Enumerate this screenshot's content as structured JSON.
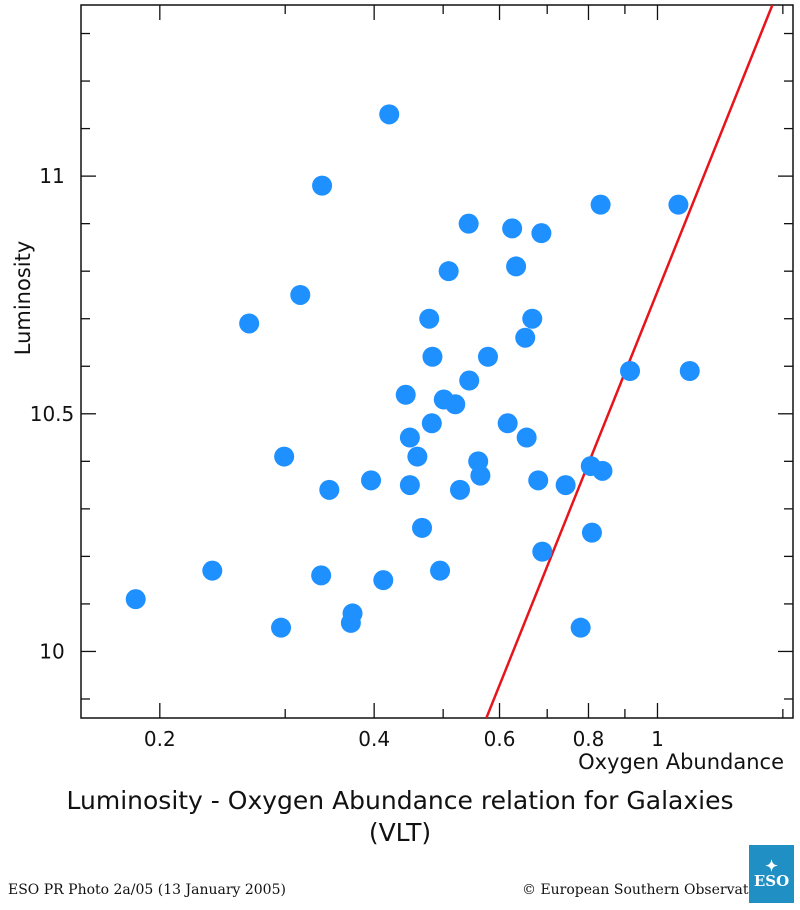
{
  "chart_data": {
    "type": "scatter",
    "xscale": "log",
    "xlim": [
      0.155,
      1.55
    ],
    "ylim": [
      9.86,
      11.36
    ],
    "xticks": [
      0.2,
      0.4,
      0.6,
      0.8,
      1
    ],
    "xtick_labels": [
      "0.2",
      "0.4",
      "0.6",
      "0.8",
      "1"
    ],
    "yticks": [
      10,
      10.5,
      11
    ],
    "ytick_labels": [
      "10",
      "10.5",
      "11"
    ],
    "xlabel": "Oxygen Abundance",
    "ylabel": "Luminosity",
    "title": "Luminosity - Oxygen Abundance relation for Galaxies",
    "subtitle": "(VLT)",
    "grid": false,
    "point_color": "#1e90ff",
    "line_color": "#e8141c",
    "series": [
      {
        "x": [
          0.185,
          0.237,
          0.267,
          0.296,
          0.299,
          0.315,
          0.337,
          0.338,
          0.346,
          0.371,
          0.373,
          0.396,
          0.412,
          0.42,
          0.443,
          0.449,
          0.449,
          0.46,
          0.467,
          0.478,
          0.482,
          0.483,
          0.495,
          0.501,
          0.509,
          0.52,
          0.528,
          0.543,
          0.544,
          0.56,
          0.564,
          0.578,
          0.616,
          0.625,
          0.633,
          0.652,
          0.655,
          0.667,
          0.68,
          0.687,
          0.689,
          0.743,
          0.78,
          0.806,
          0.809,
          0.832,
          0.837,
          0.915,
          1.07,
          1.11
        ],
        "y": [
          10.11,
          10.17,
          10.69,
          10.05,
          10.41,
          10.75,
          10.16,
          10.98,
          10.34,
          10.06,
          10.08,
          10.36,
          10.15,
          11.13,
          10.54,
          10.45,
          10.35,
          10.41,
          10.26,
          10.7,
          10.48,
          10.62,
          10.17,
          10.53,
          10.8,
          10.52,
          10.34,
          10.9,
          10.57,
          10.4,
          10.37,
          10.62,
          10.48,
          10.89,
          10.81,
          10.66,
          10.45,
          10.7,
          10.36,
          10.88,
          10.21,
          10.35,
          10.05,
          10.39,
          10.25,
          10.94,
          10.38,
          10.59,
          10.94,
          10.59
        ]
      }
    ],
    "fit_line": {
      "x": [
        0.575,
        1.45
      ],
      "y": [
        9.86,
        11.36
      ]
    }
  },
  "footer": {
    "photo_credit": "ESO PR Photo 2a/05 (13 January 2005)",
    "copyright": "© European Southern Observatory",
    "logo_text": "ESO"
  }
}
